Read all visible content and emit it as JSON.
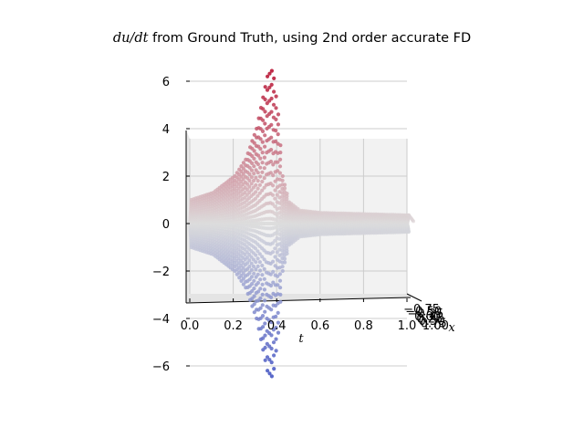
{
  "chart_data": {
    "type": "scatter",
    "projection": "3d",
    "title_math": "du/dt",
    "title_rest": " from Ground Truth, using 2nd order accurate FD",
    "xlabel": "t",
    "ylabel": "x",
    "zlabel": "",
    "xlim": [
      0.0,
      1.0
    ],
    "zlim": [
      -7,
      7
    ],
    "x_ticks": [
      "0.0",
      "0.2",
      "0.4",
      "0.6",
      "0.8",
      "1.0"
    ],
    "z_ticks": [
      "6",
      "4",
      "2",
      "0",
      "−2",
      "−4",
      "−6"
    ],
    "y_ticks": [
      "−0.75",
      "−0.50",
      "−0.25",
      "0.00",
      "0.25",
      "0.50",
      "0.75",
      "1.00"
    ],
    "grid": true,
    "colormap": "coolwarm",
    "colors": {
      "high": "#b40426",
      "mid": "#dddddd",
      "low": "#3b4cc0",
      "pane": "#f2f2f2",
      "grid": "#cccccc"
    },
    "envelope": {
      "t": [
        0.0,
        0.1,
        0.2,
        0.25,
        0.3,
        0.35,
        0.375,
        0.4,
        0.42,
        0.45,
        0.5,
        0.6,
        0.8,
        1.0
      ],
      "max_du_dt": [
        1.0,
        1.3,
        2.0,
        2.7,
        4.0,
        6.2,
        6.5,
        4.6,
        2.0,
        0.9,
        0.55,
        0.45,
        0.4,
        0.35
      ]
    }
  }
}
